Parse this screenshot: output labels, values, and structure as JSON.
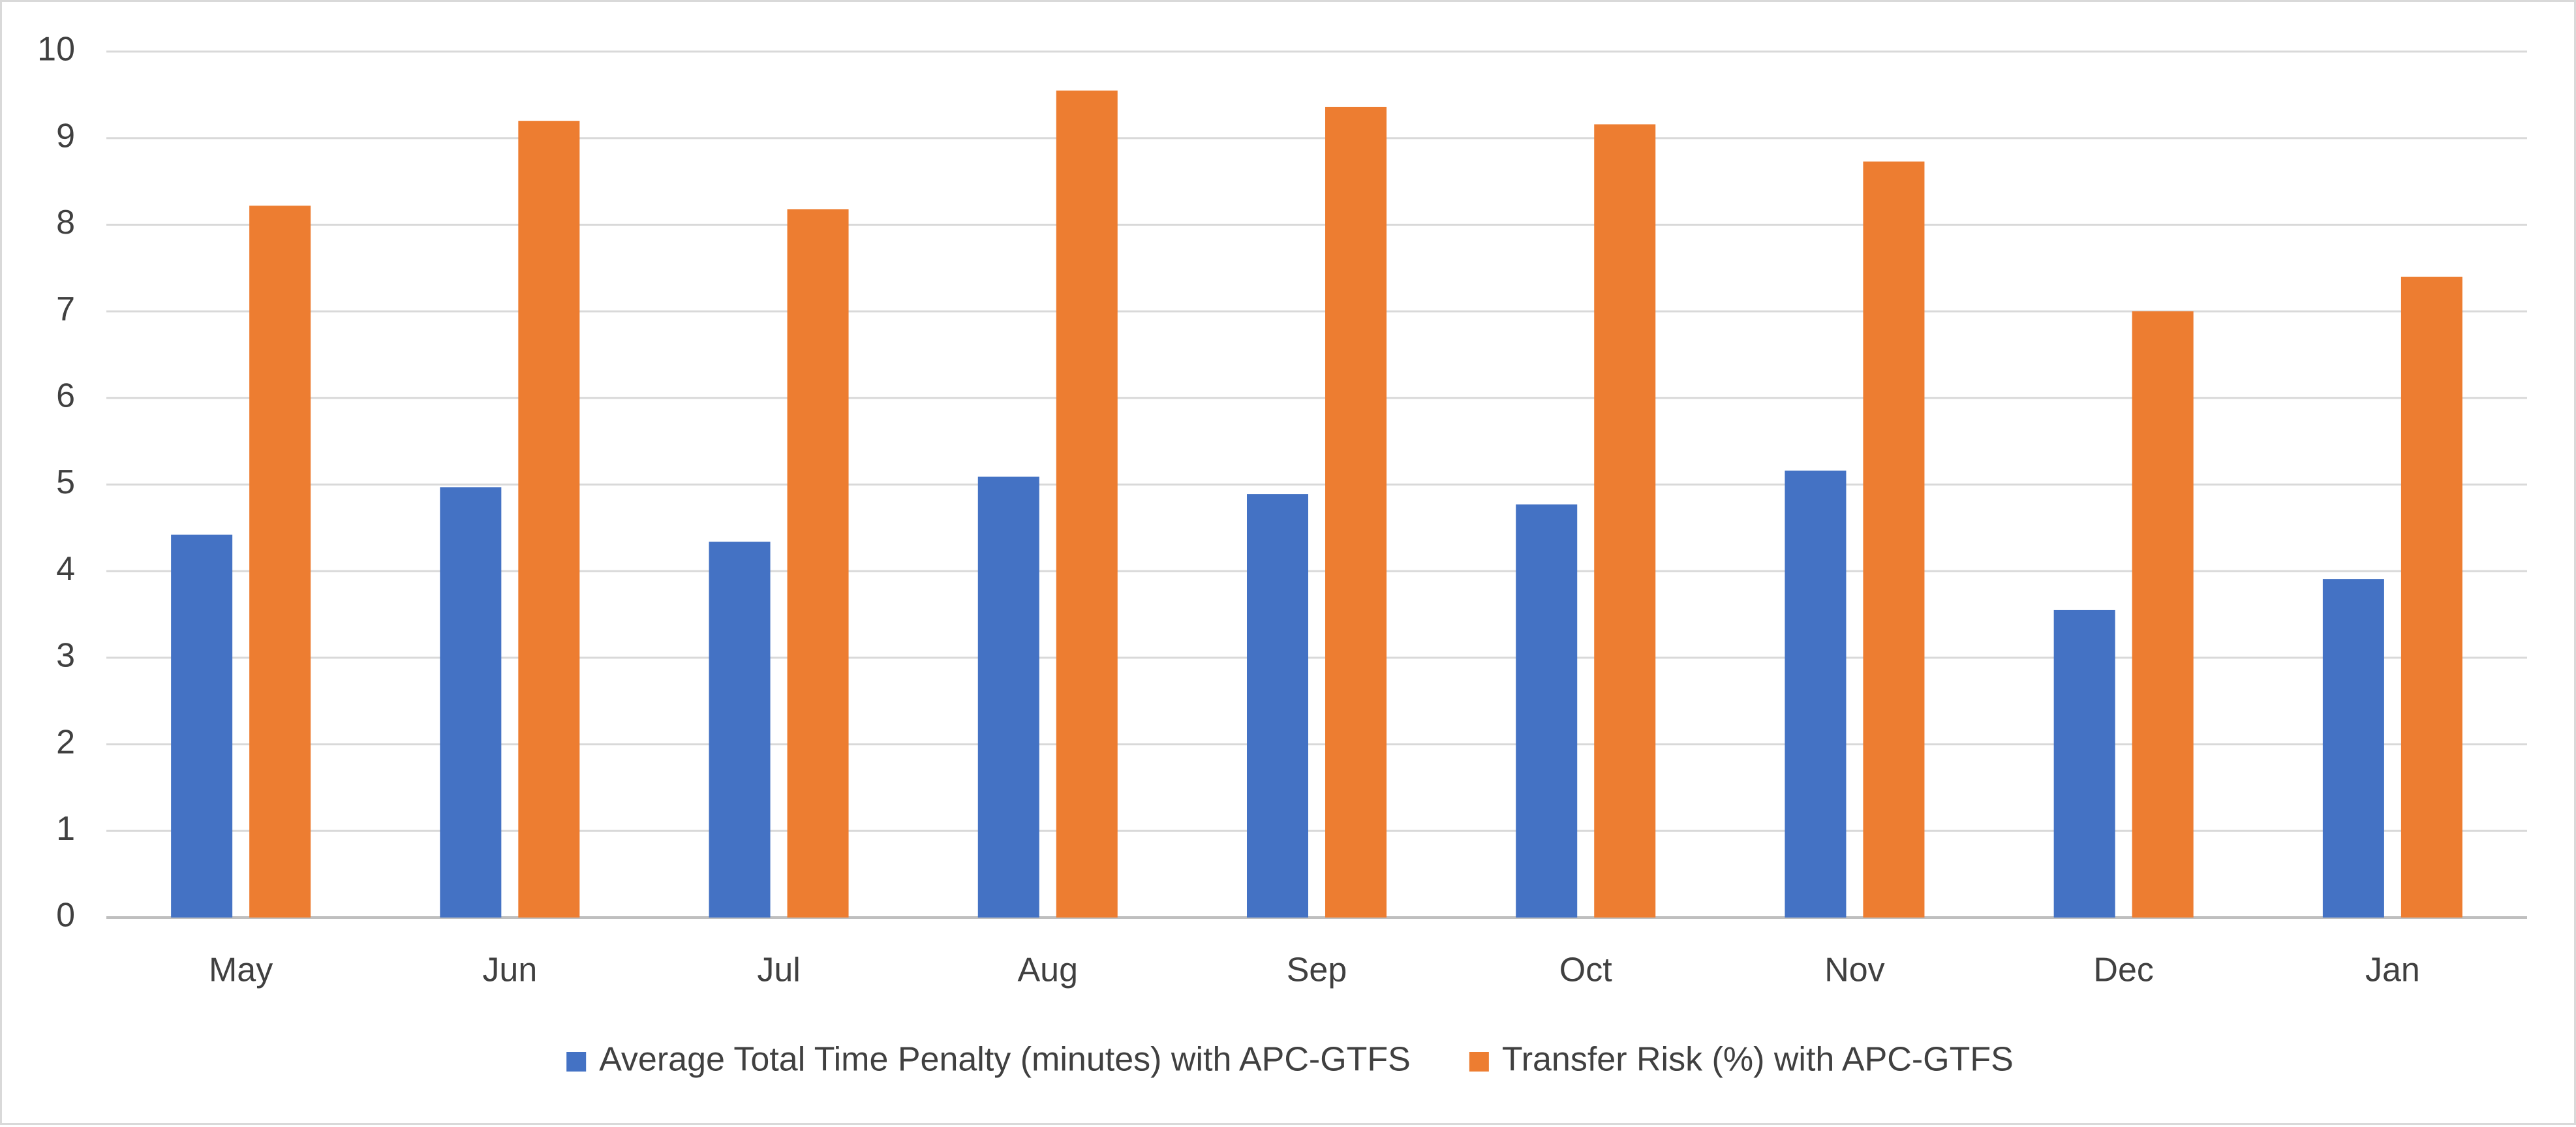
{
  "chart_data": {
    "type": "bar",
    "categories": [
      "May",
      "Jun",
      "Jul",
      "Aug",
      "Sep",
      "Oct",
      "Nov",
      "Dec",
      "Jan"
    ],
    "series": [
      {
        "name": "Average Total Time Penalty (minutes) with APC-GTFS",
        "color": "#4472c4",
        "values": [
          4.42,
          4.97,
          4.34,
          5.09,
          4.89,
          4.77,
          5.16,
          3.55,
          3.91
        ]
      },
      {
        "name": "Transfer Risk (%) with APC-GTFS",
        "color": "#ed7d31",
        "values": [
          8.22,
          9.2,
          8.18,
          9.55,
          9.36,
          9.16,
          8.73,
          7.0,
          7.4
        ]
      }
    ],
    "ylim": [
      0,
      10
    ],
    "yticks": [
      0,
      1,
      2,
      3,
      4,
      5,
      6,
      7,
      8,
      9,
      10
    ],
    "grid": true,
    "legend_position": "bottom",
    "title": "",
    "xlabel": "",
    "ylabel": ""
  }
}
